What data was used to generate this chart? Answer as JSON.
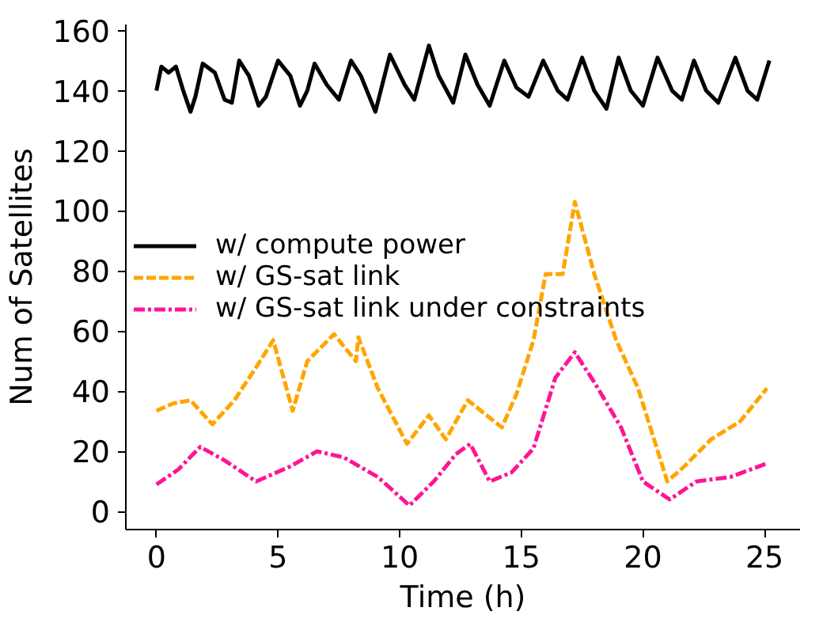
{
  "chart_data": {
    "type": "line",
    "xlabel": "Time (h)",
    "ylabel": "Num of Satellites",
    "xlim": [
      -1.26,
      26.46
    ],
    "ylim": [
      -6,
      162
    ],
    "xticks": [
      0,
      5,
      10,
      15,
      20,
      25
    ],
    "yticks": [
      0,
      20,
      40,
      60,
      80,
      100,
      120,
      140,
      160
    ],
    "grid": false,
    "legend": "left",
    "series": [
      {
        "name": "w/ compute power",
        "color": "#000000",
        "line_style": "solid",
        "x": [
          0,
          0.2,
          0.5,
          0.8,
          1.1,
          1.4,
          1.6,
          1.9,
          2.4,
          2.8,
          3.1,
          3.4,
          3.8,
          4.2,
          4.5,
          5.0,
          5.5,
          5.9,
          6.2,
          6.5,
          7.0,
          7.5,
          8.0,
          8.4,
          9.0,
          9.6,
          10.2,
          10.6,
          11.2,
          11.6,
          12.2,
          12.7,
          13.2,
          13.7,
          14.3,
          14.8,
          15.3,
          15.9,
          16.5,
          16.9,
          17.5,
          18.0,
          18.5,
          19.0,
          19.5,
          20.0,
          20.6,
          21.2,
          21.6,
          22.1,
          22.6,
          23.1,
          23.8,
          24.3,
          24.7,
          25.2
        ],
        "values": [
          140,
          148,
          146,
          148,
          140,
          133,
          138,
          149,
          146,
          137,
          136,
          150,
          145,
          135,
          138,
          150,
          145,
          135,
          140,
          149,
          142,
          137,
          150,
          145,
          133,
          152,
          142,
          137,
          155,
          145,
          136,
          152,
          142,
          135,
          150,
          141,
          138,
          150,
          140,
          137,
          151,
          140,
          134,
          151,
          140,
          135,
          151,
          140,
          137,
          150,
          140,
          136,
          151,
          140,
          137,
          150
        ]
      },
      {
        "name": "w/ GS-sat link",
        "color": "#ffa500",
        "line_style": "dashed",
        "x": [
          0,
          0.7,
          1.4,
          2.3,
          3.2,
          4.1,
          4.8,
          5.6,
          6.2,
          7.3,
          8.2,
          8.3,
          9.1,
          10.3,
          11.2,
          11.9,
          12.8,
          14.2,
          14.8,
          15.5,
          16.0,
          16.7,
          17.2,
          18.0,
          18.9,
          19.8,
          21.0,
          21.7,
          22.8,
          24.0,
          25.1
        ],
        "values": [
          33.5,
          36,
          37,
          29,
          37,
          48,
          57,
          33.5,
          50,
          59,
          50,
          58,
          41,
          22.5,
          32,
          24,
          37,
          28,
          39,
          57,
          79,
          79,
          103,
          79,
          57,
          41,
          10,
          15,
          24,
          30,
          41
        ]
      },
      {
        "name": "w/ GS-sat link under constraints",
        "color": "#ff1493",
        "line_style": "dashdot",
        "x": [
          0,
          0.9,
          1.8,
          2.8,
          4.1,
          5.5,
          6.6,
          7.7,
          9.1,
          10.4,
          11.4,
          12.3,
          12.9,
          13.7,
          14.6,
          15.5,
          16.4,
          17.2,
          18.0,
          19.1,
          20.0,
          21.1,
          22.2,
          23.6,
          25.1
        ],
        "values": [
          9,
          14,
          21.5,
          17,
          10,
          15,
          20,
          18,
          11.5,
          2,
          10,
          19,
          22.5,
          10,
          13,
          21,
          44.5,
          53,
          43,
          28,
          10,
          4,
          10,
          11.5,
          16
        ]
      }
    ]
  }
}
